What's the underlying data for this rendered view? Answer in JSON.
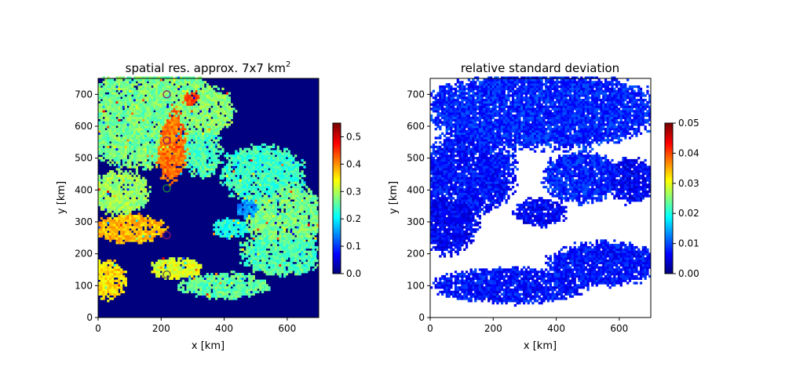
{
  "chart_data": [
    {
      "type": "heatmap",
      "title": "spatial res. approx. 7x7 km",
      "title_superscript": "2",
      "xlabel": "x [km]",
      "ylabel": "y [km]",
      "xlim": [
        0,
        700
      ],
      "ylim": [
        0,
        750
      ],
      "xticks": [
        "0",
        "200",
        "400",
        "600"
      ],
      "yticks": [
        "0",
        "100",
        "200",
        "300",
        "400",
        "500",
        "600",
        "700"
      ],
      "colormap": "jet",
      "background_color": "#00007f",
      "colorbar": {
        "min": 0.0,
        "max": 0.55,
        "ticks": [
          "0.0",
          "0.1",
          "0.2",
          "0.3",
          "0.4",
          "0.5"
        ]
      },
      "markers": [
        {
          "x": 218,
          "y": 700,
          "color": "#8b1a6b"
        },
        {
          "x": 218,
          "y": 555,
          "color": "#8b1a6b"
        },
        {
          "x": 218,
          "y": 405,
          "color": "#1a8b3a"
        },
        {
          "x": 218,
          "y": 258,
          "color": "#8b1a6b"
        },
        {
          "x": 218,
          "y": 135,
          "color": "#555555"
        }
      ],
      "regions": [
        {
          "cx": 120,
          "cy": 620,
          "rx": 180,
          "ry": 150,
          "value": 0.27
        },
        {
          "cx": 200,
          "cy": 720,
          "rx": 140,
          "ry": 60,
          "value": 0.27
        },
        {
          "cx": 330,
          "cy": 650,
          "rx": 100,
          "ry": 80,
          "value": 0.28
        },
        {
          "cx": 70,
          "cy": 390,
          "rx": 90,
          "ry": 70,
          "value": 0.29
        },
        {
          "cx": 100,
          "cy": 280,
          "rx": 110,
          "ry": 45,
          "value": 0.38
        },
        {
          "cx": 330,
          "cy": 520,
          "rx": 60,
          "ry": 80,
          "value": 0.25
        },
        {
          "cx": 520,
          "cy": 450,
          "rx": 130,
          "ry": 90,
          "value": 0.24
        },
        {
          "cx": 590,
          "cy": 320,
          "rx": 120,
          "ry": 110,
          "value": 0.27
        },
        {
          "cx": 580,
          "cy": 200,
          "rx": 130,
          "ry": 70,
          "value": 0.25
        },
        {
          "cx": 250,
          "cy": 155,
          "rx": 80,
          "ry": 35,
          "value": 0.33
        },
        {
          "cx": 400,
          "cy": 100,
          "rx": 140,
          "ry": 40,
          "value": 0.26
        },
        {
          "cx": 420,
          "cy": 280,
          "rx": 60,
          "ry": 30,
          "value": 0.22
        },
        {
          "cx": 480,
          "cy": 340,
          "rx": 40,
          "ry": 30,
          "value": 0.15
        },
        {
          "cx": 230,
          "cy": 560,
          "rx": 55,
          "ry": 130,
          "value": 0.42
        },
        {
          "cx": 300,
          "cy": 680,
          "rx": 40,
          "ry": 40,
          "value": 0.45
        },
        {
          "cx": 30,
          "cy": 120,
          "rx": 60,
          "ry": 60,
          "value": 0.36
        }
      ]
    },
    {
      "type": "heatmap",
      "title": "relative standard deviation",
      "xlabel": "x [km]",
      "ylabel": "y [km]",
      "xlim": [
        0,
        700
      ],
      "ylim": [
        0,
        750
      ],
      "xticks": [
        "0",
        "200",
        "400",
        "600"
      ],
      "yticks": [
        "0",
        "100",
        "200",
        "300",
        "400",
        "500",
        "600",
        "700"
      ],
      "colormap": "jet",
      "background_color": "#ffffff",
      "colorbar": {
        "min": 0.0,
        "max": 0.05,
        "ticks": [
          "0.00",
          "0.01",
          "0.02",
          "0.03",
          "0.04",
          "0.05"
        ]
      },
      "regions": [
        {
          "cx": 350,
          "cy": 650,
          "rx": 380,
          "ry": 120,
          "value": 0.008
        },
        {
          "cx": 120,
          "cy": 450,
          "rx": 150,
          "ry": 130,
          "value": 0.007
        },
        {
          "cx": 60,
          "cy": 300,
          "rx": 90,
          "ry": 100,
          "value": 0.006
        },
        {
          "cx": 480,
          "cy": 440,
          "rx": 120,
          "ry": 80,
          "value": 0.008
        },
        {
          "cx": 640,
          "cy": 430,
          "rx": 80,
          "ry": 70,
          "value": 0.006
        },
        {
          "cx": 550,
          "cy": 170,
          "rx": 170,
          "ry": 70,
          "value": 0.007
        },
        {
          "cx": 250,
          "cy": 100,
          "rx": 240,
          "ry": 55,
          "value": 0.007
        },
        {
          "cx": 350,
          "cy": 330,
          "rx": 80,
          "ry": 45,
          "value": 0.006
        }
      ]
    }
  ]
}
